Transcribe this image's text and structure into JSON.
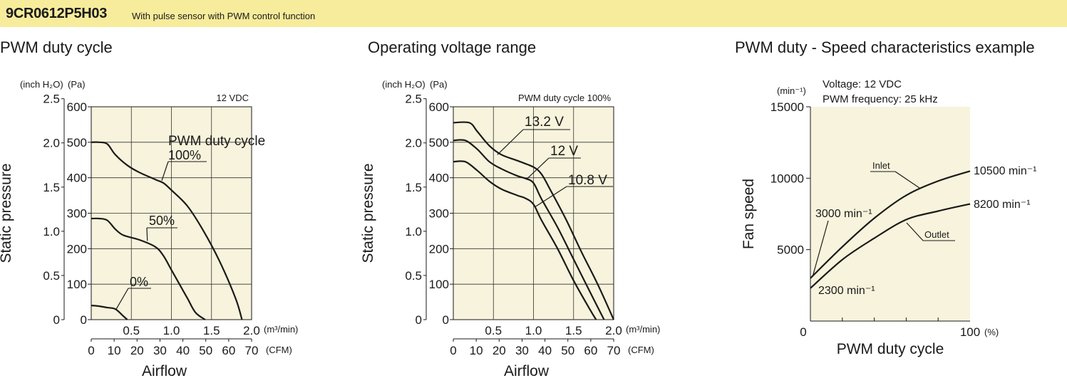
{
  "header": {
    "model": "9CR0612P5H03",
    "description": "With pulse sensor with PWM control function",
    "background_color": "#f7ec9b"
  },
  "chart_bg_color": "#f7f3dc",
  "chart_data": [
    {
      "type": "line",
      "title": "PWM duty cycle",
      "ylabel": "Static pressure",
      "xlabel": "Airflow",
      "corner_note": "12 VDC",
      "legend_title": "PWM duty cycle",
      "pressure_unit_left": "(inch H₂O)",
      "pressure_unit_right": "(Pa)",
      "x_unit_top": "(m³/min)",
      "x_unit_bottom": "(CFM)",
      "xlim": [
        0,
        2.0
      ],
      "ylim": [
        0,
        600
      ],
      "y_ticks_pa": [
        "600",
        "500",
        "400",
        "300",
        "200",
        "100",
        "0"
      ],
      "y_ticks_inch": [
        "2.5",
        "2.0",
        "1.5",
        "1.0",
        "0.5",
        "0"
      ],
      "x_ticks_m3": [
        "0.5",
        "1.0",
        "1.5",
        "2.0"
      ],
      "x_ticks_cfm": [
        "0",
        "10",
        "20",
        "30",
        "40",
        "50",
        "60",
        "70"
      ],
      "grid": true,
      "series": [
        {
          "name": "100%",
          "x": [
            0,
            0.1,
            0.2,
            0.3,
            0.45,
            0.6,
            0.8,
            0.9,
            1.0,
            1.2,
            1.4,
            1.6,
            1.8,
            1.88
          ],
          "y": [
            500,
            500,
            495,
            465,
            435,
            415,
            395,
            385,
            365,
            320,
            250,
            165,
            60,
            0
          ]
        },
        {
          "name": "50%",
          "x": [
            0,
            0.1,
            0.2,
            0.3,
            0.4,
            0.6,
            0.8,
            0.9,
            1.0,
            1.1,
            1.2,
            1.3,
            1.42
          ],
          "y": [
            285,
            285,
            280,
            255,
            238,
            225,
            205,
            180,
            140,
            100,
            60,
            20,
            0
          ]
        },
        {
          "name": "0%",
          "x": [
            0,
            0.1,
            0.2,
            0.3,
            0.4,
            0.45
          ],
          "y": [
            40,
            38,
            34,
            30,
            10,
            0
          ]
        }
      ]
    },
    {
      "type": "line",
      "title": "Operating voltage range",
      "ylabel": "Static pressure",
      "xlabel": "Airflow",
      "corner_note": "PWM duty cycle 100%",
      "pressure_unit_left": "(inch H₂O)",
      "pressure_unit_right": "(Pa)",
      "x_unit_top": "(m³/min)",
      "x_unit_bottom": "(CFM)",
      "xlim": [
        0,
        2.0
      ],
      "ylim": [
        0,
        600
      ],
      "y_ticks_pa": [
        "600",
        "500",
        "400",
        "300",
        "200",
        "100",
        "0"
      ],
      "y_ticks_inch": [
        "2.5",
        "2.0",
        "1.5",
        "1.0",
        "0.5",
        "0"
      ],
      "x_ticks_m3": [
        "0.5",
        "1.0",
        "1.5",
        "2.0"
      ],
      "x_ticks_cfm": [
        "0",
        "10",
        "20",
        "30",
        "40",
        "50",
        "60",
        "70"
      ],
      "grid": true,
      "series": [
        {
          "name": "13.2 V",
          "x": [
            0,
            0.2,
            0.3,
            0.45,
            0.6,
            0.8,
            1.0,
            1.1,
            1.2,
            1.4,
            1.6,
            1.8,
            2.0
          ],
          "y": [
            555,
            555,
            530,
            490,
            465,
            448,
            430,
            410,
            370,
            285,
            190,
            100,
            0
          ]
        },
        {
          "name": "12 V",
          "x": [
            0,
            0.15,
            0.3,
            0.45,
            0.6,
            0.8,
            0.9,
            1.0,
            1.1,
            1.3,
            1.5,
            1.7,
            1.88
          ],
          "y": [
            505,
            505,
            480,
            445,
            425,
            405,
            398,
            385,
            340,
            260,
            170,
            80,
            0
          ]
        },
        {
          "name": "10.8 V",
          "x": [
            0,
            0.15,
            0.3,
            0.45,
            0.6,
            0.8,
            0.9,
            1.0,
            1.1,
            1.3,
            1.5,
            1.7,
            1.78
          ],
          "y": [
            445,
            445,
            420,
            390,
            368,
            350,
            342,
            325,
            280,
            200,
            110,
            30,
            0
          ]
        }
      ]
    },
    {
      "type": "line",
      "title": "PWM duty - Speed characteristics example",
      "ylabel": "Fan speed",
      "xlabel": "PWM duty cycle",
      "y_unit": "(min⁻¹)",
      "x_unit": "(%)",
      "notes": [
        "Voltage: 12 VDC",
        "PWM frequency: 25 kHz"
      ],
      "xlim": [
        0,
        100
      ],
      "ylim": [
        0,
        15000
      ],
      "y_ticks": [
        "15000",
        "10000",
        "5000"
      ],
      "x_ticks": [
        "0",
        "100"
      ],
      "grid": false,
      "series": [
        {
          "name": "Inlet",
          "x": [
            0,
            20,
            40,
            60,
            80,
            100
          ],
          "y": [
            3000,
            5200,
            7200,
            8800,
            9800,
            10500
          ]
        },
        {
          "name": "Outlet",
          "x": [
            0,
            20,
            40,
            60,
            80,
            100
          ],
          "y": [
            2300,
            4300,
            5800,
            7100,
            7700,
            8200
          ]
        }
      ],
      "annotations": [
        "3000 min⁻¹",
        "2300 min⁻¹",
        "10500 min⁻¹",
        "8200 min⁻¹"
      ]
    }
  ]
}
